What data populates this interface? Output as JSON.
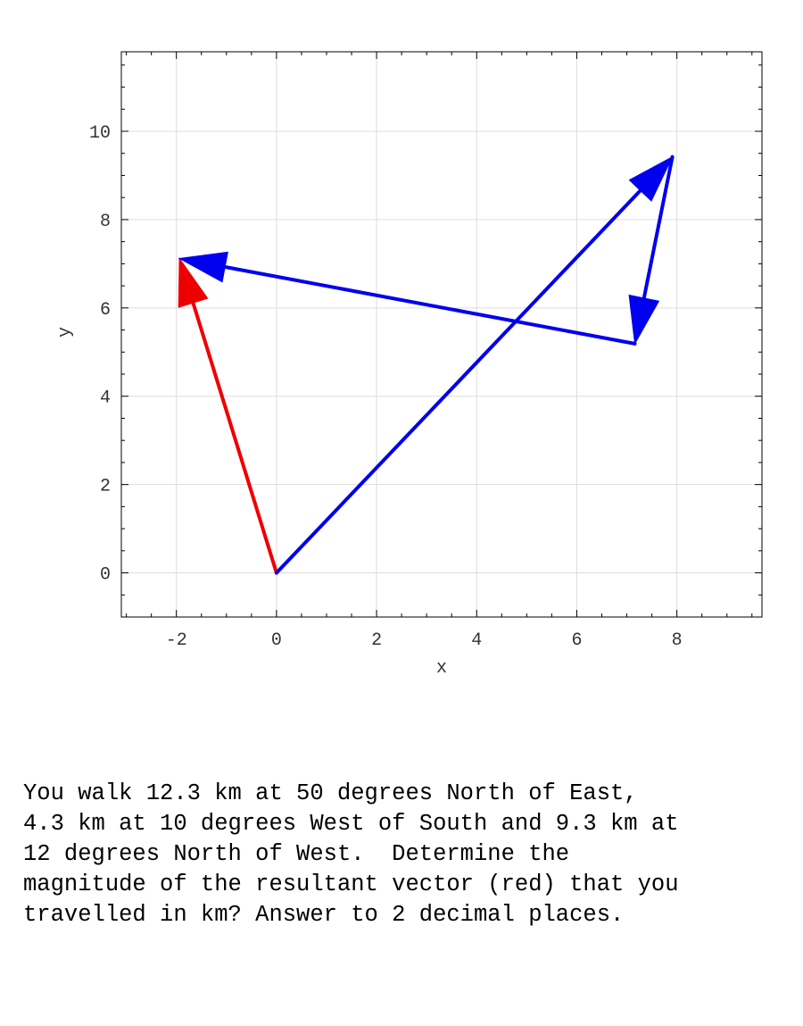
{
  "chart_data": {
    "type": "vector-plot",
    "xlabel": "x",
    "ylabel": "y",
    "xlim": [
      -3.1,
      9.7
    ],
    "ylim": [
      -1,
      11.8
    ],
    "xticks": [
      -2,
      0,
      2,
      4,
      6,
      8
    ],
    "yticks": [
      0,
      2,
      4,
      6,
      8,
      10
    ],
    "grid": true,
    "vectors": [
      {
        "from": [
          0,
          0
        ],
        "to": [
          7.91,
          9.42
        ],
        "color": "#0000ee"
      },
      {
        "from": [
          7.91,
          9.42
        ],
        "to": [
          7.16,
          5.19
        ],
        "color": "#0000ee"
      },
      {
        "from": [
          7.16,
          5.19
        ],
        "to": [
          -1.94,
          7.12
        ],
        "color": "#0000ee"
      },
      {
        "from": [
          0,
          0
        ],
        "to": [
          -1.94,
          7.12
        ],
        "color": "#ee0000"
      }
    ]
  },
  "question": "You walk 12.3 km at 50 degrees North of East,\n4.3 km at 10 degrees West of South and 9.3 km at\n12 degrees North of West.  Determine the\nmagnitude of the resultant vector (red) that you\ntravelled in km? Answer to 2 decimal places."
}
